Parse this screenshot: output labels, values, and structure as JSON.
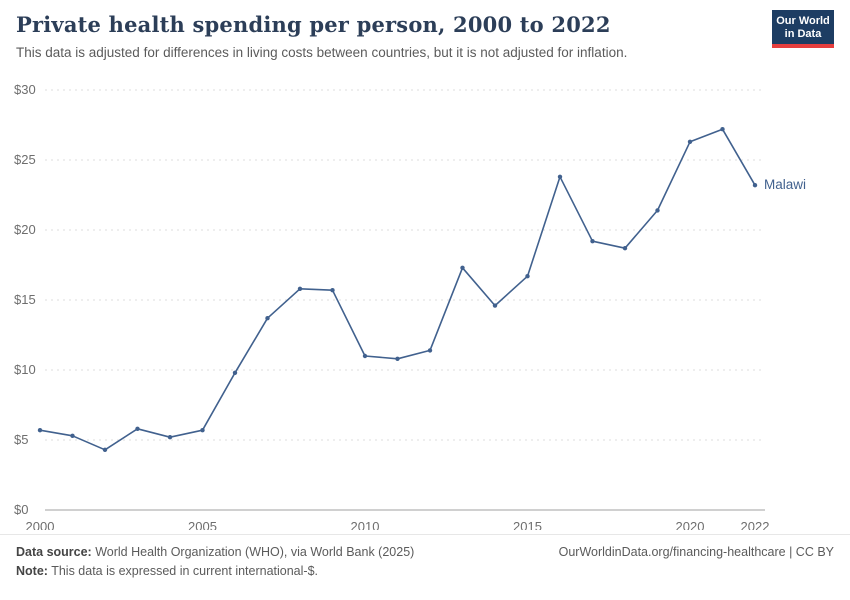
{
  "header": {
    "title": "Private health spending per person, 2000 to 2022",
    "subtitle": "This data is adjusted for differences in living costs between countries, but it is not adjusted for inflation.",
    "logo": {
      "line1": "Our World",
      "line2": "in Data"
    }
  },
  "chart_data": {
    "type": "line",
    "title": "Private health spending per person, 2000 to 2022",
    "x": [
      2000,
      2001,
      2002,
      2003,
      2004,
      2005,
      2006,
      2007,
      2008,
      2009,
      2010,
      2011,
      2012,
      2013,
      2014,
      2015,
      2016,
      2017,
      2018,
      2019,
      2020,
      2021,
      2022
    ],
    "series": [
      {
        "name": "Malawi",
        "color": "#41618e",
        "values": [
          5.7,
          5.3,
          4.3,
          5.8,
          5.2,
          5.7,
          9.8,
          13.7,
          15.8,
          15.7,
          11.0,
          10.8,
          11.4,
          17.3,
          14.6,
          16.7,
          23.8,
          19.2,
          18.7,
          21.4,
          26.3,
          27.2,
          23.2
        ]
      }
    ],
    "ylim": [
      0,
      30
    ],
    "yticks": [
      0,
      5,
      10,
      15,
      20,
      25,
      30
    ],
    "ytick_labels": [
      "$0",
      "$5",
      "$10",
      "$15",
      "$20",
      "$25",
      "$30"
    ],
    "xticks": [
      2000,
      2005,
      2010,
      2015,
      2020,
      2022
    ],
    "xlabel": "",
    "ylabel": "",
    "grid": true,
    "legend_position": "end-of-line"
  },
  "footer": {
    "source_label": "Data source:",
    "source_text": " World Health Organization (WHO), via World Bank (2025)",
    "note_label": "Note:",
    "note_text": " This data is expressed in current international-$.",
    "url": "OurWorldinData.org/financing-healthcare",
    "divider": " | ",
    "license": "CC BY"
  }
}
